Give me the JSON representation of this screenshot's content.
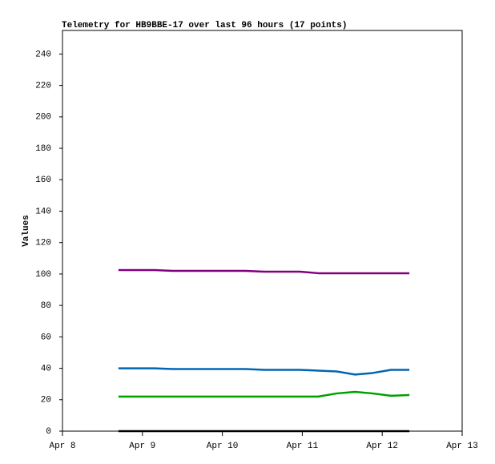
{
  "chart_data": {
    "type": "line",
    "title": "Telemetry for HB9BBE-17 over last 96 hours (17 points)",
    "y_label": "Values",
    "x": [
      8.7,
      8.93,
      9.15,
      9.38,
      9.61,
      9.84,
      10.06,
      10.29,
      10.52,
      10.75,
      10.97,
      11.2,
      11.43,
      11.66,
      11.88,
      12.11,
      12.34
    ],
    "series": [
      {
        "color": "#800080",
        "values": [
          102.5,
          102.5,
          102.5,
          102,
          102,
          102,
          102,
          102,
          101.5,
          101.5,
          101.5,
          100.5,
          100.5,
          100.5,
          100.5,
          100.5,
          100.5
        ]
      },
      {
        "color": "#0066b3",
        "values": [
          40,
          40,
          40,
          39.5,
          39.5,
          39.5,
          39.5,
          39.5,
          39,
          39,
          39,
          38.5,
          38,
          36,
          37,
          39,
          39
        ]
      },
      {
        "color": "#00a000",
        "values": [
          22,
          22,
          22,
          22,
          22,
          22,
          22,
          22,
          22,
          22,
          22,
          22,
          24,
          25,
          24,
          22.5,
          23
        ]
      },
      {
        "color": "#000000",
        "values": [
          0,
          0,
          0,
          0,
          0,
          0,
          0,
          0,
          0,
          0,
          0,
          0,
          0,
          0,
          0,
          0,
          0
        ]
      }
    ],
    "xlim": [
      8,
      13
    ],
    "xticks": [
      {
        "value": 8,
        "label": "Apr 8"
      },
      {
        "value": 9,
        "label": "Apr 9"
      },
      {
        "value": 10,
        "label": "Apr 10"
      },
      {
        "value": 11,
        "label": "Apr 11"
      },
      {
        "value": 12,
        "label": "Apr 12"
      },
      {
        "value": 13,
        "label": "Apr 13"
      }
    ],
    "ylim": [
      0,
      255
    ],
    "yticks": [
      0,
      20,
      40,
      60,
      80,
      100,
      120,
      140,
      160,
      180,
      200,
      220,
      240
    ],
    "grid": false
  }
}
